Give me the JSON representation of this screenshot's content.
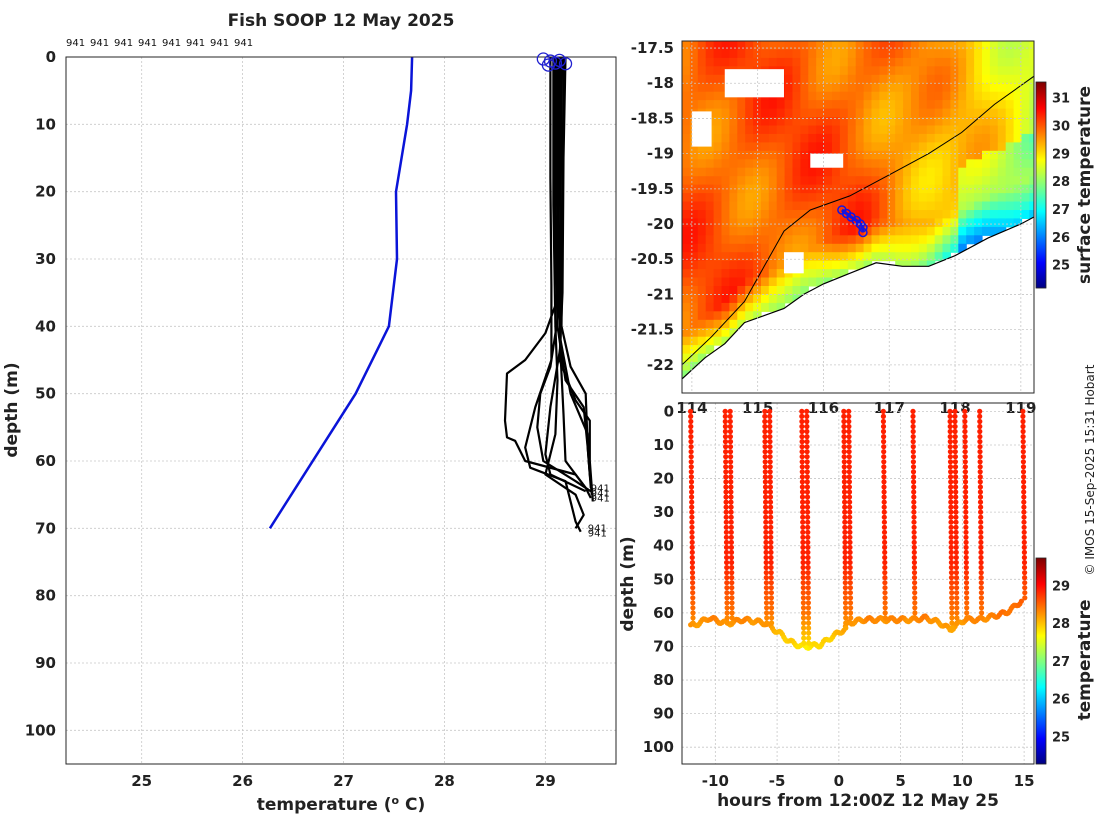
{
  "title": "Fish SOOP 12 May 2025",
  "copyright": "© IMOS 15-Sep-2025 15:31 Hobart",
  "chart_data": [
    {
      "id": "profile",
      "type": "line",
      "xlabel_prefix": "temperature (",
      "xlabel_sup": "o",
      "xlabel_suffix": " C)",
      "ylabel": "depth (m)",
      "xlim": [
        24.25,
        29.7
      ],
      "ylim": [
        0,
        105
      ],
      "y_reversed": true,
      "grid": true,
      "xticks": [
        25,
        26,
        27,
        28,
        29
      ],
      "yticks": [
        0,
        10,
        20,
        30,
        40,
        50,
        60,
        70,
        80,
        90,
        100
      ],
      "top_labels": [
        "941",
        "941",
        "941",
        "941",
        "941",
        "941",
        "941",
        "941"
      ],
      "end_labels": [
        {
          "text": "941",
          "x": 29.45,
          "y": 64.5
        },
        {
          "text": "941",
          "x": 29.45,
          "y": 65.3
        },
        {
          "text": "941",
          "x": 29.45,
          "y": 66.0
        },
        {
          "text": "941",
          "x": 29.42,
          "y": 70.5
        },
        {
          "text": "941",
          "x": 29.42,
          "y": 71.2
        }
      ],
      "series": [
        {
          "color": "#0a14d8",
          "points": [
            [
              27.68,
              0
            ],
            [
              27.67,
              5
            ],
            [
              27.63,
              10
            ],
            [
              27.52,
              20
            ],
            [
              27.53,
              30
            ],
            [
              27.45,
              40
            ],
            [
              27.12,
              50
            ],
            [
              26.27,
              70
            ]
          ]
        }
      ],
      "bundle_color": "#000000",
      "bundle": [
        [
          [
            29.1,
            0
          ],
          [
            29.11,
            10
          ],
          [
            29.1,
            25
          ],
          [
            29.12,
            40
          ],
          [
            29.2,
            48
          ],
          [
            29.38,
            52
          ],
          [
            29.42,
            58
          ],
          [
            29.45,
            64
          ]
        ],
        [
          [
            29.15,
            0
          ],
          [
            29.14,
            12
          ],
          [
            29.16,
            30
          ],
          [
            29.15,
            42
          ],
          [
            29.25,
            50
          ],
          [
            29.42,
            56
          ],
          [
            29.43,
            60
          ],
          [
            29.46,
            65
          ]
        ],
        [
          [
            29.2,
            0
          ],
          [
            29.18,
            15
          ],
          [
            29.17,
            35
          ],
          [
            29.14,
            45
          ],
          [
            29.3,
            51
          ],
          [
            29.44,
            54
          ],
          [
            29.44,
            60
          ],
          [
            29.47,
            66
          ]
        ],
        [
          [
            29.12,
            0
          ],
          [
            29.12,
            20
          ],
          [
            29.13,
            38
          ],
          [
            29.05,
            46
          ],
          [
            28.95,
            50
          ],
          [
            28.92,
            55
          ],
          [
            28.98,
            60
          ],
          [
            29.3,
            63
          ],
          [
            29.45,
            64.5
          ]
        ],
        [
          [
            29.1,
            0
          ],
          [
            29.1,
            20
          ],
          [
            29.12,
            36
          ],
          [
            29.0,
            41
          ],
          [
            28.8,
            45
          ],
          [
            28.62,
            47
          ],
          [
            28.6,
            54
          ],
          [
            28.62,
            56.5
          ],
          [
            28.7,
            57
          ],
          [
            28.8,
            60
          ],
          [
            29.3,
            62
          ],
          [
            29.4,
            64
          ]
        ],
        [
          [
            29.05,
            0
          ],
          [
            29.05,
            18
          ],
          [
            29.06,
            34
          ],
          [
            29.06,
            45
          ],
          [
            28.9,
            52
          ],
          [
            28.8,
            58
          ],
          [
            28.85,
            61
          ],
          [
            29.2,
            63
          ],
          [
            29.3,
            69
          ],
          [
            29.35,
            70.5
          ]
        ],
        [
          [
            29.08,
            0
          ],
          [
            29.08,
            22
          ],
          [
            29.1,
            40
          ],
          [
            29.12,
            48
          ],
          [
            29.1,
            56
          ],
          [
            29.0,
            62
          ],
          [
            29.3,
            65
          ],
          [
            29.38,
            68
          ],
          [
            29.3,
            70
          ]
        ],
        [
          [
            29.18,
            0
          ],
          [
            29.17,
            25
          ],
          [
            29.16,
            40
          ],
          [
            29.25,
            46
          ],
          [
            29.4,
            50
          ],
          [
            29.42,
            58
          ],
          [
            29.44,
            62
          ],
          [
            29.46,
            64.5
          ]
        ],
        [
          [
            29.13,
            0
          ],
          [
            29.13,
            30
          ],
          [
            29.15,
            44
          ],
          [
            29.18,
            53
          ],
          [
            29.2,
            60
          ],
          [
            29.4,
            64
          ],
          [
            29.45,
            65.5
          ]
        ],
        [
          [
            29.16,
            0
          ],
          [
            29.15,
            28
          ],
          [
            29.15,
            43
          ],
          [
            29.05,
            52
          ],
          [
            29.0,
            59
          ],
          [
            29.05,
            62
          ],
          [
            29.4,
            64.5
          ]
        ]
      ],
      "surface_markers": [
        {
          "x": 28.98,
          "y": 0.3
        },
        {
          "x": 29.05,
          "y": 0.6
        },
        {
          "x": 29.1,
          "y": 0.9
        },
        {
          "x": 29.14,
          "y": 0.5
        },
        {
          "x": 29.2,
          "y": 1.0
        },
        {
          "x": 29.03,
          "y": 1.2
        }
      ]
    },
    {
      "id": "map",
      "type": "heatmap",
      "xlim": [
        113.85,
        119.2
      ],
      "ylim": [
        -22.4,
        -17.4
      ],
      "xticks": [
        114,
        115,
        116,
        117,
        118,
        119
      ],
      "yticks": [
        -17.5,
        -18,
        -18.5,
        -19,
        -19.5,
        -20,
        -20.5,
        -21,
        -21.5,
        -22
      ],
      "colorbar_label": "surface temperature",
      "colorbar_ticks": [
        25,
        26,
        27,
        28,
        29,
        30,
        31
      ],
      "colorbar_range": [
        24.2,
        31.6
      ],
      "track": [
        [
          116.28,
          -19.8
        ],
        [
          116.35,
          -19.85
        ],
        [
          116.42,
          -19.9
        ],
        [
          116.5,
          -19.95
        ],
        [
          116.56,
          -20.0
        ],
        [
          116.6,
          -20.05
        ],
        [
          116.6,
          -20.12
        ]
      ],
      "track_color": "#1515e0"
    },
    {
      "id": "section",
      "type": "scatter",
      "xlabel": "hours from 12:00Z 12 May 25",
      "ylabel": "depth (m)",
      "xlim": [
        -12.7,
        15.8
      ],
      "ylim": [
        -2.5,
        105
      ],
      "y_reversed": true,
      "xticks": [
        -10,
        -5,
        0,
        5,
        10,
        15
      ],
      "yticks": [
        0,
        10,
        20,
        30,
        40,
        50,
        60,
        70,
        80,
        90,
        100
      ],
      "colorbar_label": "temperature",
      "colorbar_ticks": [
        25,
        26,
        27,
        28,
        29
      ],
      "colorbar_range": [
        24.3,
        29.75
      ],
      "casts": [
        {
          "t": -12.0,
          "dt": 0.5,
          "bottom": 64
        },
        {
          "t": -9.2,
          "dt": 0.4,
          "bottom": 63
        },
        {
          "t": -8.8,
          "dt": 0.4,
          "bottom": 63
        },
        {
          "t": -6.0,
          "dt": 0.4,
          "bottom": 63
        },
        {
          "t": -5.6,
          "dt": 0.4,
          "bottom": 64
        },
        {
          "t": -3.0,
          "dt": 0.4,
          "bottom": 70
        },
        {
          "t": -2.6,
          "dt": 0.4,
          "bottom": 70
        },
        {
          "t": 0.4,
          "dt": 0.4,
          "bottom": 65
        },
        {
          "t": 0.8,
          "dt": 0.4,
          "bottom": 63
        },
        {
          "t": 3.6,
          "dt": 0.4,
          "bottom": 62
        },
        {
          "t": 6.0,
          "dt": 0.4,
          "bottom": 62
        },
        {
          "t": 9.0,
          "dt": 0.4,
          "bottom": 65
        },
        {
          "t": 9.4,
          "dt": 0.4,
          "bottom": 64
        },
        {
          "t": 10.2,
          "dt": 0.4,
          "bottom": 62
        },
        {
          "t": 11.4,
          "dt": 0.4,
          "bottom": 62
        },
        {
          "t": 14.9,
          "dt": 0.4,
          "bottom": 56
        }
      ],
      "bottom_track": [
        [
          -12.0,
          64
        ],
        [
          -11.3,
          63
        ],
        [
          -10.5,
          61.5
        ],
        [
          -9.7,
          62.5
        ],
        [
          -9.2,
          63
        ],
        [
          -8.8,
          63
        ],
        [
          -7.8,
          62
        ],
        [
          -6.8,
          62.5
        ],
        [
          -6.0,
          63
        ],
        [
          -5.6,
          64
        ],
        [
          -4.8,
          66
        ],
        [
          -4.0,
          68.5
        ],
        [
          -3.0,
          70
        ],
        [
          -2.6,
          70
        ],
        [
          -1.5,
          69.5
        ],
        [
          -0.5,
          67
        ],
        [
          0.4,
          65
        ],
        [
          0.8,
          63
        ],
        [
          2.0,
          62
        ],
        [
          3.0,
          62
        ],
        [
          3.6,
          62
        ],
        [
          6.0,
          62
        ],
        [
          7.0,
          61.5
        ],
        [
          8.2,
          63
        ],
        [
          9.0,
          65
        ],
        [
          9.4,
          64
        ],
        [
          10.2,
          62
        ],
        [
          11.0,
          62
        ],
        [
          11.4,
          62
        ],
        [
          12.5,
          61
        ],
        [
          13.5,
          60
        ],
        [
          14.3,
          58
        ],
        [
          14.9,
          56
        ]
      ]
    }
  ]
}
